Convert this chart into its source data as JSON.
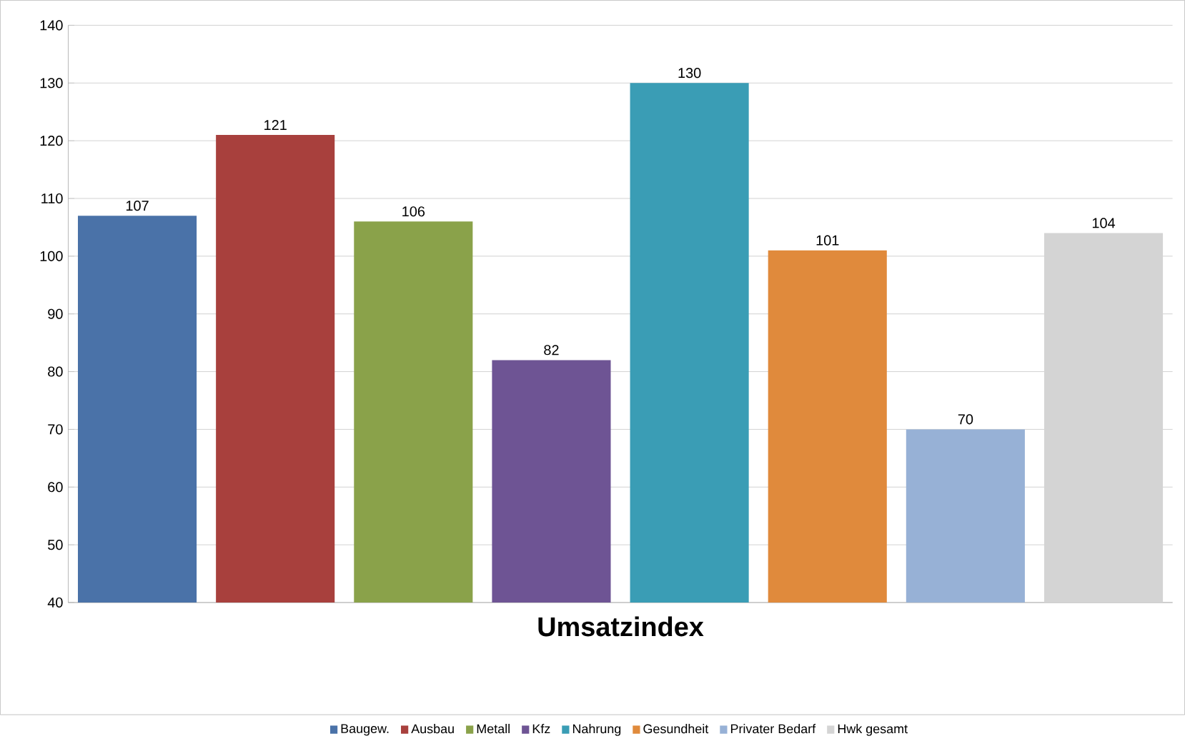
{
  "chart_data": {
    "type": "bar",
    "xlabel": "Umsatzindex",
    "categories": [
      null,
      null,
      null,
      null,
      null,
      null,
      null,
      null
    ],
    "series": [
      {
        "name": "Baugew.",
        "color": "#4a72a8",
        "values": [
          107,
          null,
          null,
          null,
          null,
          null,
          null,
          null
        ]
      },
      {
        "name": "Ausbau",
        "color": "#a8403d",
        "values": [
          null,
          121,
          null,
          null,
          null,
          null,
          null,
          null
        ]
      },
      {
        "name": "Metall",
        "color": "#8aa24a",
        "values": [
          null,
          null,
          106,
          null,
          null,
          null,
          null,
          null
        ]
      },
      {
        "name": "Kfz",
        "color": "#6e5494",
        "values": [
          null,
          null,
          null,
          82,
          null,
          null,
          null,
          null
        ]
      },
      {
        "name": "Nahrung",
        "color": "#3a9db5",
        "values": [
          null,
          null,
          null,
          null,
          130,
          null,
          null,
          null
        ]
      },
      {
        "name": "Gesundheit",
        "color": "#e08a3c",
        "values": [
          null,
          null,
          null,
          null,
          null,
          101,
          null,
          null
        ]
      },
      {
        "name": "Privater Bedarf",
        "color": "#97b1d6",
        "values": [
          null,
          null,
          null,
          null,
          null,
          null,
          70,
          null
        ]
      },
      {
        "name": "Hwk gesamt",
        "color": "#d4d4d4",
        "values": [
          null,
          null,
          null,
          null,
          null,
          null,
          null,
          104
        ]
      }
    ],
    "ylim": [
      40,
      140
    ],
    "yticks": [
      40,
      50,
      60,
      70,
      80,
      90,
      100,
      110,
      120,
      130,
      140
    ],
    "grid": "y",
    "legend": "bottom",
    "data_labels": true,
    "tick_labels": "y"
  }
}
